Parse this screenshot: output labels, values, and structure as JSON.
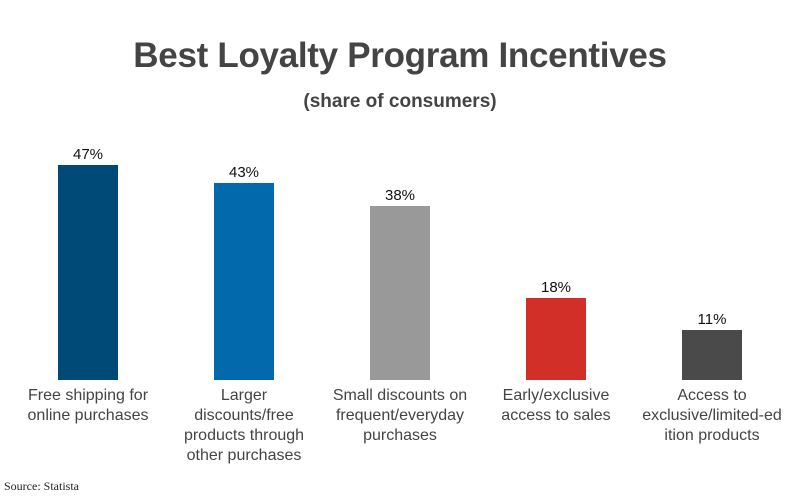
{
  "chart_data": {
    "type": "bar",
    "title": "Best Loyalty Program Incentives",
    "subtitle": "(share of consumers)",
    "xlabel": "",
    "ylabel": "",
    "ylim": [
      0,
      50
    ],
    "grid": false,
    "legend": null,
    "categories": [
      "Free shipping for online purchases",
      "Larger discounts/free products through other purchases",
      "Small discounts on frequent/everyday purchases",
      "Early/exclusive access to sales",
      "Access to exclusive/limited-edition products"
    ],
    "values": [
      47,
      43,
      38,
      18,
      11
    ],
    "value_labels": [
      "47%",
      "43%",
      "38%",
      "18%",
      "11%"
    ],
    "colors": [
      "#004a78",
      "#0369ad",
      "#999999",
      "#d12f27",
      "#4a4a4a"
    ],
    "source": "Source: Statista"
  },
  "bars": [
    {
      "label_lines": "Free shipping for\nonline purchases",
      "value_label": "47%",
      "value": 47,
      "color": "#004a78"
    },
    {
      "label_lines": "Larger\ndiscounts/free\nproducts through\nother purchases",
      "value_label": "43%",
      "value": 43,
      "color": "#0369ad"
    },
    {
      "label_lines": "Small discounts on\nfrequent/everyday\npurchases",
      "value_label": "38%",
      "value": 38,
      "color": "#999999"
    },
    {
      "label_lines": "Early/exclusive\naccess to sales",
      "value_label": "18%",
      "value": 18,
      "color": "#d12f27"
    },
    {
      "label_lines": "Access to\nexclusive/limited-ed\nition products",
      "value_label": "11%",
      "value": 11,
      "color": "#4a4a4a"
    }
  ],
  "header": {
    "title": "Best Loyalty Program Incentives",
    "subtitle": "(share of consumers)"
  },
  "footer": {
    "source": "Source: Statista"
  }
}
